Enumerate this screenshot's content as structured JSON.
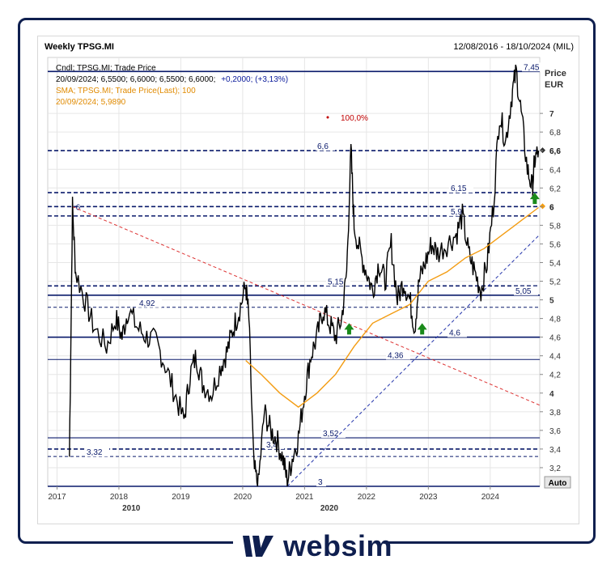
{
  "header": {
    "title": "Weekly TPSG.MI",
    "date_range": "12/08/2016 - 18/10/2024 (MIL)"
  },
  "legend": {
    "line1": "Cndl; TPSG.MI; Trade Price",
    "line2_values": "20/09/2024; 6,5500; 6,6000; 6,5500; 6,6000;",
    "line2_change": "+0,2000; (+3,13%)",
    "line3": "SMA; TPSG.MI; Trade Price(Last);  100",
    "line4": "20/09/2024; 5,9890"
  },
  "axis": {
    "price_label": "Price",
    "currency_label": "EUR",
    "auto_label": "Auto",
    "bottom_years": [
      "2010",
      "2020"
    ],
    "pct_label": "100,0%"
  },
  "colors": {
    "price": "#000000",
    "sma": "#f39c12",
    "level_dark": "#0a1a6b",
    "fib": "#c00000",
    "arrow": "#1a8a1a",
    "brand": "#0f1f4f"
  },
  "brand": {
    "name": "websim",
    "icon": "websim-logo-icon"
  },
  "chart_data": {
    "type": "line",
    "title": "Weekly TPSG.MI",
    "xlabel": "",
    "ylabel": "Price EUR",
    "ylim": [
      3.0,
      7.6
    ],
    "xlim": [
      2016.85,
      2024.8
    ],
    "x_ticks": [
      "2017",
      "2018",
      "2019",
      "2020",
      "2021",
      "2022",
      "2023",
      "2024"
    ],
    "y_ticks": [
      "3,2",
      "3,4",
      "3,6",
      "3,8",
      "4",
      "4,2",
      "4,4",
      "4,6",
      "4,8",
      "5",
      "5,2",
      "5,4",
      "5,6",
      "5,8",
      "6",
      "6,2",
      "6,4",
      "6,6",
      "6,8",
      "7"
    ],
    "price_series": {
      "name": "TPSG.MI Trade Price",
      "points": [
        [
          2017.2,
          3.32
        ],
        [
          2017.25,
          6.0
        ],
        [
          2017.3,
          5.3
        ],
        [
          2017.45,
          5.0
        ],
        [
          2017.6,
          4.7
        ],
        [
          2017.8,
          4.5
        ],
        [
          2017.95,
          4.8
        ],
        [
          2018.05,
          4.6
        ],
        [
          2018.15,
          4.9
        ],
        [
          2018.3,
          4.7
        ],
        [
          2018.45,
          4.6
        ],
        [
          2018.6,
          4.55
        ],
        [
          2018.75,
          4.3
        ],
        [
          2018.9,
          4.0
        ],
        [
          2019.05,
          3.7
        ],
        [
          2019.15,
          4.2
        ],
        [
          2019.25,
          4.4
        ],
        [
          2019.35,
          4.1
        ],
        [
          2019.5,
          4.0
        ],
        [
          2019.65,
          4.3
        ],
        [
          2019.75,
          4.45
        ],
        [
          2019.85,
          4.7
        ],
        [
          2019.95,
          4.9
        ],
        [
          2020.05,
          5.15
        ],
        [
          2020.1,
          4.8
        ],
        [
          2020.18,
          3.2
        ],
        [
          2020.25,
          3.0
        ],
        [
          2020.35,
          3.8
        ],
        [
          2020.45,
          3.6
        ],
        [
          2020.55,
          3.5
        ],
        [
          2020.65,
          3.3
        ],
        [
          2020.72,
          3.05
        ],
        [
          2020.8,
          3.3
        ],
        [
          2020.9,
          3.52
        ],
        [
          2021.0,
          4.0
        ],
        [
          2021.1,
          4.4
        ],
        [
          2021.2,
          4.6
        ],
        [
          2021.3,
          4.9
        ],
        [
          2021.4,
          4.75
        ],
        [
          2021.5,
          4.6
        ],
        [
          2021.6,
          4.8
        ],
        [
          2021.68,
          5.3
        ],
        [
          2021.75,
          6.6
        ],
        [
          2021.8,
          5.8
        ],
        [
          2021.9,
          5.5
        ],
        [
          2022.0,
          5.3
        ],
        [
          2022.1,
          5.1
        ],
        [
          2022.2,
          5.4
        ],
        [
          2022.3,
          5.2
        ],
        [
          2022.4,
          5.6
        ],
        [
          2022.5,
          5.0
        ],
        [
          2022.6,
          5.2
        ],
        [
          2022.7,
          5.0
        ],
        [
          2022.78,
          4.7
        ],
        [
          2022.85,
          5.2
        ],
        [
          2022.95,
          5.4
        ],
        [
          2023.05,
          5.6
        ],
        [
          2023.15,
          5.5
        ],
        [
          2023.3,
          5.6
        ],
        [
          2023.45,
          5.7
        ],
        [
          2023.55,
          5.9
        ],
        [
          2023.65,
          5.5
        ],
        [
          2023.75,
          5.3
        ],
        [
          2023.85,
          5.1
        ],
        [
          2023.95,
          5.4
        ],
        [
          2024.05,
          6.0
        ],
        [
          2024.15,
          7.0
        ],
        [
          2024.25,
          6.7
        ],
        [
          2024.35,
          7.2
        ],
        [
          2024.42,
          7.45
        ],
        [
          2024.5,
          7.0
        ],
        [
          2024.6,
          6.4
        ],
        [
          2024.68,
          6.2
        ],
        [
          2024.72,
          6.5
        ],
        [
          2024.78,
          6.6
        ]
      ]
    },
    "sma_series": {
      "name": "SMA; TPSG.MI; Trade Price(Last); 100",
      "points": [
        [
          2020.05,
          4.35
        ],
        [
          2020.3,
          4.2
        ],
        [
          2020.6,
          4.0
        ],
        [
          2020.9,
          3.85
        ],
        [
          2021.2,
          4.0
        ],
        [
          2021.5,
          4.2
        ],
        [
          2021.8,
          4.5
        ],
        [
          2022.1,
          4.75
        ],
        [
          2022.4,
          4.85
        ],
        [
          2022.7,
          4.95
        ],
        [
          2023.0,
          5.2
        ],
        [
          2023.3,
          5.3
        ],
        [
          2023.6,
          5.45
        ],
        [
          2023.9,
          5.55
        ],
        [
          2024.2,
          5.7
        ],
        [
          2024.5,
          5.85
        ],
        [
          2024.78,
          5.99
        ]
      ]
    },
    "horizontal_levels": [
      {
        "value": 7.45,
        "label": "7,45",
        "style": "solid"
      },
      {
        "value": 6.6,
        "label": "6,6",
        "style": "dashed"
      },
      {
        "value": 6.15,
        "label": "6,15",
        "style": "dashed"
      },
      {
        "value": 6.0,
        "label": "",
        "style": "dashed"
      },
      {
        "value": 5.9,
        "label": "5,9",
        "style": "dashed"
      },
      {
        "value": 5.15,
        "label": "5,15",
        "style": "dashed"
      },
      {
        "value": 5.05,
        "label": "5,05",
        "style": "solid"
      },
      {
        "value": 4.92,
        "label": "4,92",
        "style": "thin-dashed"
      },
      {
        "value": 4.6,
        "label": "4,6",
        "style": "solid"
      },
      {
        "value": 4.36,
        "label": "4,36",
        "style": "thin"
      },
      {
        "value": 3.52,
        "label": "3,52",
        "style": "solid-thin"
      },
      {
        "value": 3.4,
        "label": "3,4",
        "style": "dashed"
      },
      {
        "value": 3.32,
        "label": "3,32",
        "style": "thin-dashed"
      },
      {
        "value": 3.0,
        "label": "3",
        "style": "solid"
      }
    ],
    "end_markers": [
      {
        "value": 6.6,
        "label": "6,6"
      },
      {
        "value": 6.0,
        "label": "6"
      }
    ],
    "start_label": {
      "value": 6.0,
      "label": "6"
    },
    "trendlines": [
      {
        "name": "falling",
        "style": "red-dashed",
        "from": [
          2017.25,
          6.0
        ],
        "to": [
          2024.8,
          3.87
        ]
      },
      {
        "name": "rising",
        "style": "blue-dashed",
        "from": [
          2020.72,
          3.0
        ],
        "to": [
          2024.8,
          5.7
        ]
      }
    ],
    "arrows": [
      {
        "x": 2021.72,
        "y": 4.75,
        "direction": "up"
      },
      {
        "x": 2022.9,
        "y": 4.75,
        "direction": "up"
      },
      {
        "x": 2024.72,
        "y": 6.15,
        "direction": "up"
      }
    ]
  }
}
